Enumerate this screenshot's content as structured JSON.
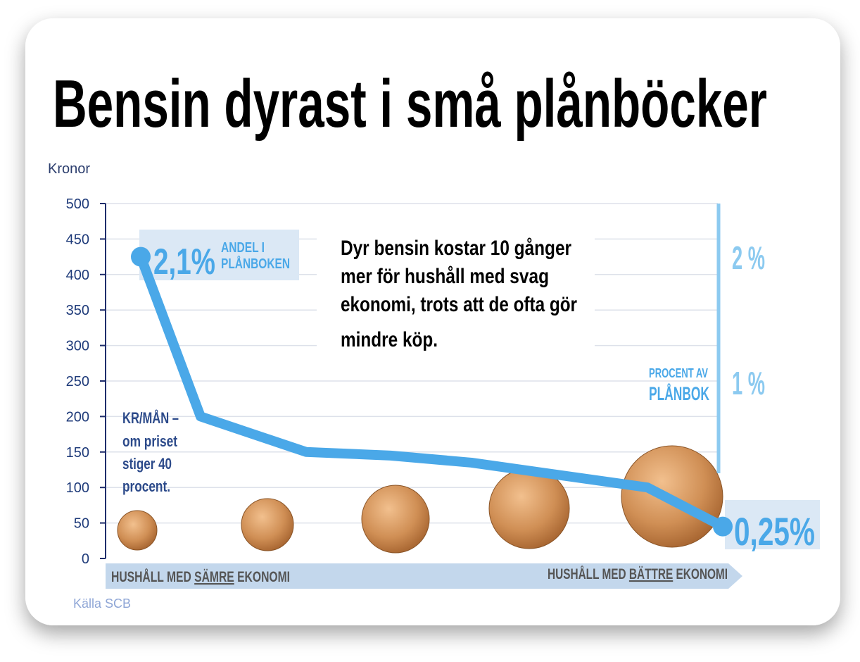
{
  "chart_data": {
    "type": "line",
    "title": "Bensin dyrast i små plånböcker",
    "y_label": "Kronor",
    "categories": [
      null,
      null,
      null,
      null,
      null,
      null,
      null
    ],
    "values": [
      425,
      200,
      150,
      145,
      135,
      100,
      45
    ],
    "color": "#4aa8e8",
    "ylim": [
      0,
      500
    ],
    "yticks": [
      0,
      50,
      100,
      150,
      200,
      250,
      300,
      350,
      400,
      450,
      500
    ],
    "grid": true,
    "start_value": "2,1%",
    "start_note": [
      "ANDEL I",
      "PLÅNBOKEN"
    ],
    "end_value": "0,25%",
    "note": [
      "Dyr bensin kostar 10 gånger",
      "mer för hushåll med svag",
      "ekonomi, trots att de ofta gör",
      "mindre köp."
    ],
    "left_note": [
      "KR/MÅN –",
      "om priset",
      "stiger 40",
      "procent."
    ],
    "right_scale": [
      "2 %",
      "1 %"
    ],
    "right_scale_title": [
      "PROCENT AV",
      "PLÅNBOK"
    ],
    "x_left": [
      "HUSHÅLL MED ",
      "SÄMRE",
      " EKONOMI"
    ],
    "x_right": [
      "HUSHÅLL MED ",
      "BÄTTRE",
      " EKONOMI"
    ],
    "source": "Källa SCB"
  }
}
